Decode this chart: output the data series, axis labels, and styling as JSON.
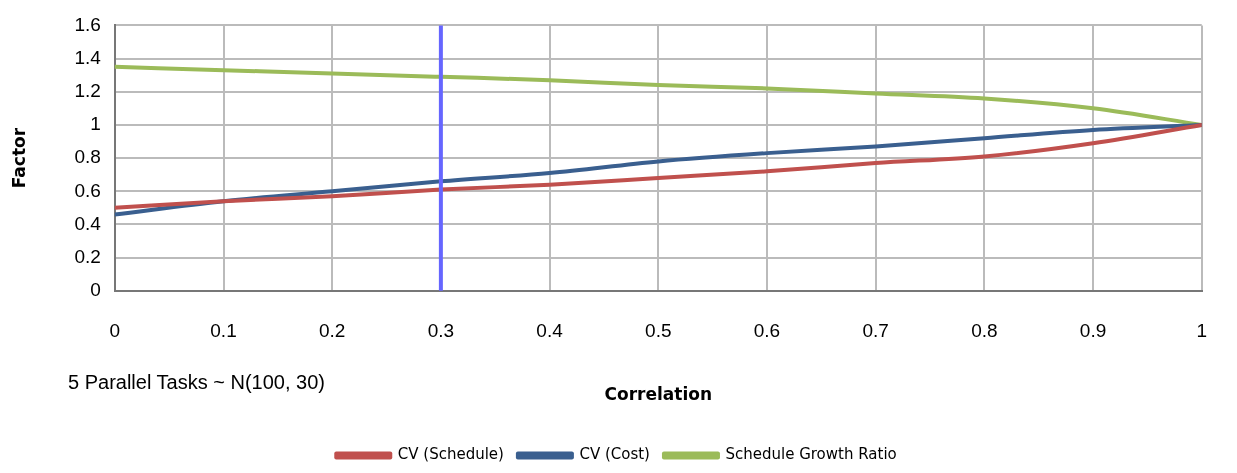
{
  "chart_data": {
    "type": "line",
    "x": [
      0,
      0.1,
      0.2,
      0.3,
      0.4,
      0.5,
      0.6,
      0.7,
      0.8,
      0.9,
      1
    ],
    "series": [
      {
        "name": "CV (Schedule)",
        "color": "#c0504d",
        "values": [
          0.5,
          0.54,
          0.57,
          0.61,
          0.64,
          0.68,
          0.72,
          0.77,
          0.81,
          0.89,
          1.0
        ]
      },
      {
        "name": "CV (Cost)",
        "color": "#3a5f8f",
        "values": [
          0.46,
          0.54,
          0.6,
          0.66,
          0.71,
          0.78,
          0.83,
          0.87,
          0.92,
          0.97,
          1.0
        ]
      },
      {
        "name": "Schedule Growth Ratio",
        "color": "#9bbb59",
        "values": [
          1.35,
          1.33,
          1.31,
          1.29,
          1.27,
          1.24,
          1.22,
          1.19,
          1.16,
          1.1,
          1.0
        ]
      }
    ],
    "xlabel": "Correlation",
    "ylabel": "Factor",
    "xlim": [
      0,
      1
    ],
    "xticks": [
      0,
      0.1,
      0.2,
      0.3,
      0.4,
      0.5,
      0.6,
      0.7,
      0.8,
      0.9,
      1
    ],
    "ylim": [
      0,
      1.6
    ],
    "yticks": [
      0,
      0.2,
      0.4,
      0.6,
      0.8,
      1,
      1.2,
      1.4,
      1.6
    ],
    "ref_lines": [
      {
        "axis": "x",
        "value": 0.3,
        "color": "#6666ff"
      }
    ],
    "annotations": [
      "5 Parallel Tasks ~ N(100, 30)"
    ],
    "grid": true,
    "legend": "bottom",
    "marker": "none",
    "line_style": "solid"
  }
}
